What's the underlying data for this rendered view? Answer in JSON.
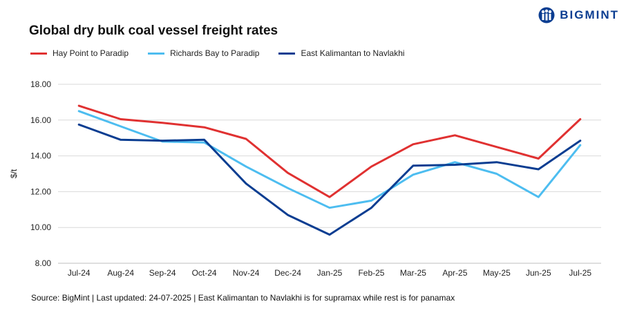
{
  "title": "Global dry bulk coal vessel freight rates",
  "brand": "BIGMINT",
  "logo_icon": "bigmint-logo-icon",
  "footer": "Source: BigMint | Last updated: 24-07-2025 | East Kalimantan to Navlakhi is for supramax while rest is for panamax",
  "chart_data": {
    "type": "line",
    "title": "Global dry bulk coal vessel freight rates",
    "xlabel": "",
    "ylabel": "$/t",
    "categories": [
      "Jul-24",
      "Aug-24",
      "Sep-24",
      "Oct-24",
      "Nov-24",
      "Dec-24",
      "Jan-25",
      "Feb-25",
      "Mar-25",
      "Apr-25",
      "May-25",
      "Jun-25",
      "Jul-25"
    ],
    "ylim": [
      8,
      18
    ],
    "yticks": [
      "8.00",
      "10.00",
      "12.00",
      "14.00",
      "16.00",
      "18.00"
    ],
    "grid": true,
    "legend_position": "top-left",
    "series": [
      {
        "name": "Hay Point to Paradip",
        "color": "#e03131",
        "values": [
          16.8,
          16.05,
          15.85,
          15.6,
          14.95,
          13.05,
          11.7,
          13.4,
          14.65,
          15.15,
          14.5,
          13.85,
          16.05
        ]
      },
      {
        "name": "Richards Bay to Paradip",
        "color": "#4dbdf0",
        "values": [
          16.5,
          15.65,
          14.8,
          14.75,
          13.4,
          12.2,
          11.1,
          11.5,
          12.95,
          13.65,
          13.0,
          11.7,
          14.6
        ]
      },
      {
        "name": "East Kalimantan to Navlakhi",
        "color": "#0a3d91",
        "values": [
          15.75,
          14.9,
          14.85,
          14.9,
          12.45,
          10.7,
          9.6,
          11.1,
          13.45,
          13.5,
          13.65,
          13.25,
          14.85
        ]
      }
    ]
  }
}
